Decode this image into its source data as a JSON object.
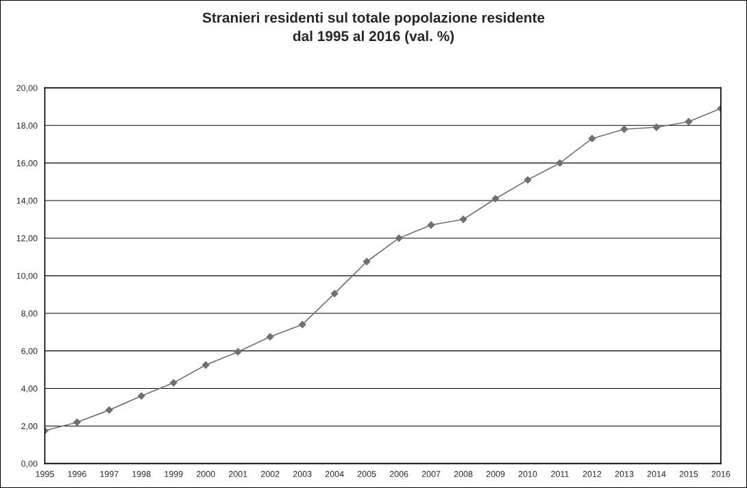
{
  "chart_data": {
    "type": "line",
    "title": "Stranieri residenti sul totale popolazione residente\ndal 1995 al 2016 (val. %)",
    "categories": [
      "1995",
      "1996",
      "1997",
      "1998",
      "1999",
      "2000",
      "2001",
      "2002",
      "2003",
      "2004",
      "2005",
      "2006",
      "2007",
      "2008",
      "2009",
      "2010",
      "2011",
      "2012",
      "2013",
      "2014",
      "2015",
      "2016"
    ],
    "series": [
      {
        "color": "#707070",
        "values": [
          1.75,
          2.2,
          2.85,
          3.6,
          4.3,
          5.25,
          5.95,
          6.75,
          7.4,
          9.05,
          10.75,
          12.0,
          12.7,
          13.0,
          14.1,
          15.1,
          16.0,
          17.3,
          17.8,
          17.9,
          18.2,
          18.9
        ]
      }
    ],
    "ylim": [
      0,
      20
    ],
    "yticks": [
      {
        "value": 0,
        "label": "0,00"
      },
      {
        "value": 2,
        "label": "2,00"
      },
      {
        "value": 4,
        "label": "4,00"
      },
      {
        "value": 6,
        "label": "6,00"
      },
      {
        "value": 8,
        "label": "8,00"
      },
      {
        "value": 10,
        "label": "10,00"
      },
      {
        "value": 12,
        "label": "12,00"
      },
      {
        "value": 14,
        "label": "14,00"
      },
      {
        "value": 16,
        "label": "16,00"
      },
      {
        "value": 18,
        "label": "18,00"
      },
      {
        "value": 20,
        "label": "20,00"
      }
    ],
    "grid": "y",
    "marker": "diamond",
    "line_style": "solid",
    "legend": false
  }
}
